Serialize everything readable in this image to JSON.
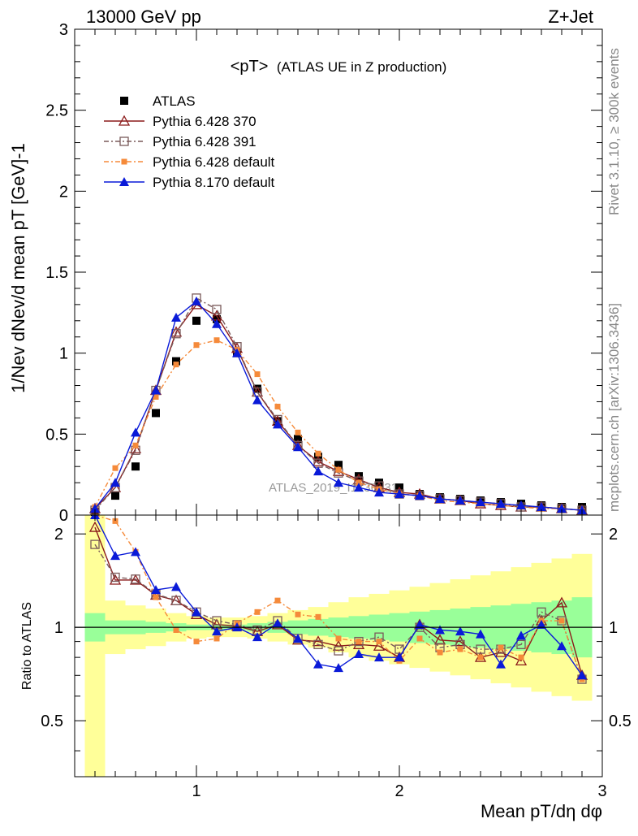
{
  "header": {
    "left": "13000 GeV pp",
    "right": "Z+Jet"
  },
  "side_labels": {
    "rivet": "Rivet 3.1.10, ≥ 300k events",
    "mcplots": "mcplots.cern.ch [arXiv:1306.3436]"
  },
  "watermark": "ATLAS_2019_I1736531",
  "plot_title": {
    "main": "<pT>",
    "sub": "(ATLAS UE in Z production)"
  },
  "colors": {
    "atlas": "#000000",
    "p370": "#8b1a1a",
    "p391": "#7a5a5a",
    "p6def": "#f58a3a",
    "p8def": "#0a1ad8",
    "band_inner": "#99ff99",
    "band_outer": "#ffff99"
  },
  "chart_data": {
    "type": "line",
    "title": "<pT> (ATLAS UE in Z production)",
    "xlabel": "Mean pT/dη dφ",
    "ylabel": "1/Nev dNev/d mean pT [GeV]-1",
    "ratio_ylabel": "Ratio to ATLAS",
    "xlim": [
      0.4,
      3.0
    ],
    "ylim": [
      0,
      3
    ],
    "ratio_ylim": [
      0.33,
      2.3
    ],
    "x_ticks": [
      "1",
      "2",
      "3"
    ],
    "y_ticks": [
      "0",
      "0.5",
      "1",
      "1.5",
      "2",
      "2.5",
      "3"
    ],
    "ratio_y_ticks": [
      "0.5",
      "1",
      "2"
    ],
    "legend_position": "top-left",
    "x": [
      0.5,
      0.6,
      0.7,
      0.8,
      0.9,
      1.0,
      1.1,
      1.2,
      1.3,
      1.4,
      1.5,
      1.6,
      1.7,
      1.8,
      1.9,
      2.0,
      2.1,
      2.2,
      2.3,
      2.4,
      2.5,
      2.6,
      2.7,
      2.8,
      2.9
    ],
    "series": [
      {
        "name": "ATLAS",
        "values": [
          0.02,
          0.12,
          0.3,
          0.63,
          0.95,
          1.2,
          1.21,
          1.0,
          0.78,
          0.58,
          0.47,
          0.36,
          0.31,
          0.24,
          0.2,
          0.17,
          0.13,
          0.11,
          0.1,
          0.09,
          0.08,
          0.07,
          0.06,
          0.05,
          0.05
        ]
      },
      {
        "name": "Pythia 6.428 370",
        "values": [
          0.04,
          0.17,
          0.41,
          0.77,
          1.13,
          1.3,
          1.23,
          1.03,
          0.76,
          0.58,
          0.43,
          0.33,
          0.27,
          0.22,
          0.17,
          0.14,
          0.13,
          0.1,
          0.09,
          0.07,
          0.06,
          0.05,
          0.05,
          0.04,
          0.03
        ]
      },
      {
        "name": "Pythia 6.428 391",
        "values": [
          0.03,
          0.17,
          0.4,
          0.77,
          1.12,
          1.34,
          1.27,
          1.04,
          0.76,
          0.59,
          0.43,
          0.32,
          0.26,
          0.21,
          0.18,
          0.13,
          0.12,
          0.1,
          0.09,
          0.08,
          0.07,
          0.05,
          0.05,
          0.04,
          0.03
        ]
      },
      {
        "name": "Pythia 6.428 default",
        "values": [
          0.05,
          0.29,
          0.43,
          0.73,
          0.93,
          1.05,
          1.08,
          1.02,
          0.87,
          0.67,
          0.51,
          0.38,
          0.28,
          0.2,
          0.16,
          0.13,
          0.12,
          0.09,
          0.08,
          0.07,
          0.06,
          0.05,
          0.04,
          0.04,
          0.03
        ]
      },
      {
        "name": "Pythia 8.170 default",
        "values": [
          0.04,
          0.2,
          0.51,
          0.77,
          1.22,
          1.32,
          1.18,
          1.0,
          0.71,
          0.56,
          0.42,
          0.27,
          0.2,
          0.17,
          0.14,
          0.13,
          0.12,
          0.1,
          0.09,
          0.08,
          0.07,
          0.06,
          0.05,
          0.04,
          0.03
        ]
      }
    ],
    "ratio_series": [
      {
        "name": "Pythia 6.428 370",
        "values": [
          2.1,
          1.42,
          1.42,
          1.27,
          1.22,
          1.1,
          1.02,
          1.01,
          0.97,
          1.02,
          0.91,
          0.9,
          0.87,
          0.88,
          0.87,
          0.8,
          1.02,
          0.91,
          0.9,
          0.8,
          0.83,
          0.78,
          1.05,
          1.2,
          0.7
        ]
      },
      {
        "name": "Pythia 6.428 391",
        "values": [
          1.85,
          1.45,
          1.43,
          1.28,
          1.22,
          1.12,
          1.05,
          1.02,
          0.98,
          1.05,
          0.92,
          0.88,
          0.84,
          0.9,
          0.93,
          0.85,
          1.0,
          0.86,
          0.88,
          0.85,
          0.85,
          0.88,
          1.12,
          1.05,
          0.68
        ]
      },
      {
        "name": "Pythia 6.428 default",
        "values": [
          2.5,
          2.2,
          1.75,
          1.25,
          0.98,
          0.9,
          0.92,
          1.03,
          1.12,
          1.22,
          1.1,
          1.08,
          0.92,
          0.9,
          0.9,
          0.78,
          0.92,
          0.83,
          0.85,
          0.8,
          0.86,
          0.8,
          1.05,
          1.05,
          0.68
        ]
      },
      {
        "name": "Pythia 8.170 default",
        "values": [
          2.4,
          1.7,
          1.75,
          1.32,
          1.35,
          1.12,
          0.97,
          1.0,
          0.93,
          1.03,
          0.92,
          0.76,
          0.74,
          0.82,
          0.8,
          0.8,
          1.02,
          0.98,
          0.97,
          0.95,
          0.76,
          0.94,
          1.02,
          0.87,
          0.7
        ]
      }
    ],
    "ratio_band": {
      "edges": [
        0.45,
        0.55,
        0.65,
        0.75,
        0.85,
        0.95,
        1.05,
        1.15,
        1.25,
        1.35,
        1.45,
        1.55,
        1.65,
        1.75,
        1.85,
        1.95,
        2.05,
        2.15,
        2.25,
        2.35,
        2.45,
        2.55,
        2.65,
        2.75,
        2.85,
        2.95
      ],
      "inner": [
        0.9,
        0.95,
        0.95,
        0.96,
        0.97,
        0.98,
        0.98,
        0.98,
        0.97,
        0.96,
        0.95,
        0.94,
        0.93,
        0.92,
        0.91,
        0.9,
        0.89,
        0.88,
        0.87,
        0.86,
        0.85,
        0.84,
        0.83,
        0.82,
        0.8
      ],
      "outer": [
        0.3,
        0.82,
        0.85,
        0.87,
        0.9,
        0.92,
        0.93,
        0.93,
        0.92,
        0.9,
        0.88,
        0.86,
        0.83,
        0.8,
        0.78,
        0.76,
        0.74,
        0.72,
        0.7,
        0.68,
        0.66,
        0.64,
        0.62,
        0.6,
        0.58
      ]
    }
  }
}
